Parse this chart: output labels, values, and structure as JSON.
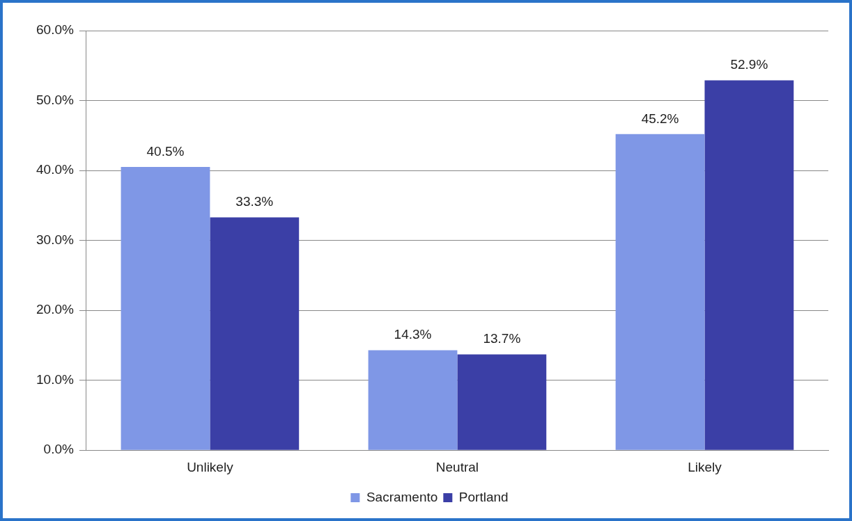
{
  "chart_data": {
    "type": "bar",
    "categories": [
      "Unlikely",
      "Neutral",
      "Likely"
    ],
    "series": [
      {
        "name": "Sacramento",
        "color": "#7f97e6",
        "values": [
          40.5,
          14.3,
          45.2
        ],
        "value_labels": [
          "40.5%",
          "14.3%",
          "45.2%"
        ]
      },
      {
        "name": "Portland",
        "color": "#3b3fa6",
        "values": [
          33.3,
          13.7,
          52.9
        ],
        "value_labels": [
          "33.3%",
          "13.7%",
          "52.9%"
        ]
      }
    ],
    "ylim": [
      0,
      60
    ],
    "yticks": [
      {
        "value": 0,
        "label": "0.0%"
      },
      {
        "value": 10,
        "label": "10.0%"
      },
      {
        "value": 20,
        "label": "20.0%"
      },
      {
        "value": 30,
        "label": "30.0%"
      },
      {
        "value": 40,
        "label": "40.0%"
      },
      {
        "value": 50,
        "label": "50.0%"
      },
      {
        "value": 60,
        "label": "60.0%"
      }
    ],
    "grid": "y",
    "legend": "bottom"
  }
}
